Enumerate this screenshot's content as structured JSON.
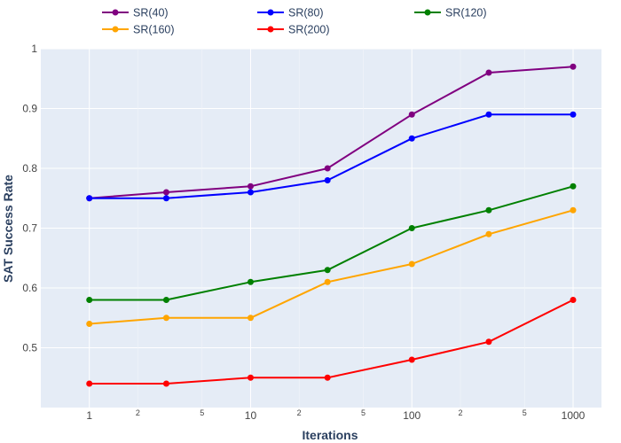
{
  "chart_data": {
    "type": "line",
    "xscale": "log",
    "xlabel": "Iterations",
    "ylabel": "SAT Success Rate",
    "x": [
      1,
      3,
      10,
      30,
      100,
      300,
      1000
    ],
    "xlim": [
      0.5,
      1500
    ],
    "ylim": [
      0.4,
      1.0
    ],
    "grid": true,
    "legend_position": "top",
    "x_ticks_major": [
      {
        "value": 1,
        "label": "1"
      },
      {
        "value": 10,
        "label": "10"
      },
      {
        "value": 100,
        "label": "100"
      },
      {
        "value": 1000,
        "label": "1000"
      }
    ],
    "x_ticks_minor": [
      {
        "value": 2,
        "label": "2"
      },
      {
        "value": 5,
        "label": "5"
      },
      {
        "value": 20,
        "label": "2"
      },
      {
        "value": 50,
        "label": "5"
      },
      {
        "value": 200,
        "label": "2"
      },
      {
        "value": 500,
        "label": "5"
      }
    ],
    "y_ticks": [
      {
        "value": 0.5,
        "label": "0.5"
      },
      {
        "value": 0.6,
        "label": "0.6"
      },
      {
        "value": 0.7,
        "label": "0.7"
      },
      {
        "value": 0.8,
        "label": "0.8"
      },
      {
        "value": 0.9,
        "label": "0.9"
      },
      {
        "value": 1.0,
        "label": "1"
      }
    ],
    "series": [
      {
        "name": "SR(40)",
        "color": "#800080",
        "values": [
          0.75,
          0.76,
          0.77,
          0.8,
          0.89,
          0.96,
          0.97
        ]
      },
      {
        "name": "SR(80)",
        "color": "#0000ff",
        "values": [
          0.75,
          0.75,
          0.76,
          0.78,
          0.85,
          0.89,
          0.89
        ]
      },
      {
        "name": "SR(120)",
        "color": "#008000",
        "values": [
          0.58,
          0.58,
          0.61,
          0.63,
          0.7,
          0.73,
          0.77
        ]
      },
      {
        "name": "SR(160)",
        "color": "#ffa500",
        "values": [
          0.54,
          0.55,
          0.55,
          0.61,
          0.64,
          0.69,
          0.73
        ]
      },
      {
        "name": "SR(200)",
        "color": "#ff0000",
        "values": [
          0.44,
          0.44,
          0.45,
          0.45,
          0.48,
          0.51,
          0.58
        ]
      }
    ],
    "plot_background": "#e5ecf6"
  }
}
